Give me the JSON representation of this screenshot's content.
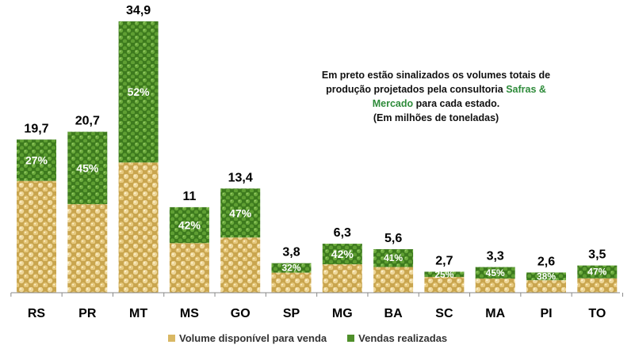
{
  "chart_data": {
    "type": "bar",
    "stacked": true,
    "categories": [
      "RS",
      "PR",
      "MT",
      "MS",
      "GO",
      "SP",
      "MG",
      "BA",
      "SC",
      "MA",
      "PI",
      "TO"
    ],
    "totals": [
      19.7,
      20.7,
      34.9,
      11,
      13.4,
      3.8,
      6.3,
      5.6,
      2.7,
      3.3,
      2.6,
      3.5
    ],
    "total_labels": [
      "19,7",
      "20,7",
      "34,9",
      "11",
      "13,4",
      "3,8",
      "6,3",
      "5,6",
      "2,7",
      "3,3",
      "2,6",
      "3,5"
    ],
    "sold_pct": [
      27,
      45,
      52,
      42,
      47,
      32,
      42,
      41,
      25,
      45,
      38,
      47
    ],
    "sold_pct_labels": [
      "27%",
      "45%",
      "52%",
      "42%",
      "47%",
      "32%",
      "42%",
      "41%",
      "25%",
      "45%",
      "38%",
      "47%"
    ],
    "series": [
      {
        "name": "Volume disponível para venda",
        "color": "#d9b864"
      },
      {
        "name": "Vendas realizadas",
        "color": "#4f8f2a"
      }
    ],
    "ylim": [
      0,
      35
    ],
    "grid": false,
    "legend_position": "bottom"
  },
  "annotation": {
    "line1": "Em preto estão sinalizados os volumes totais de produção projetados pela consultoria",
    "brand": "Safras & Mercado",
    "line2": "para cada estado.",
    "unit": "(Em milhões de toneladas)",
    "brand_color": "#2e8b3a"
  }
}
